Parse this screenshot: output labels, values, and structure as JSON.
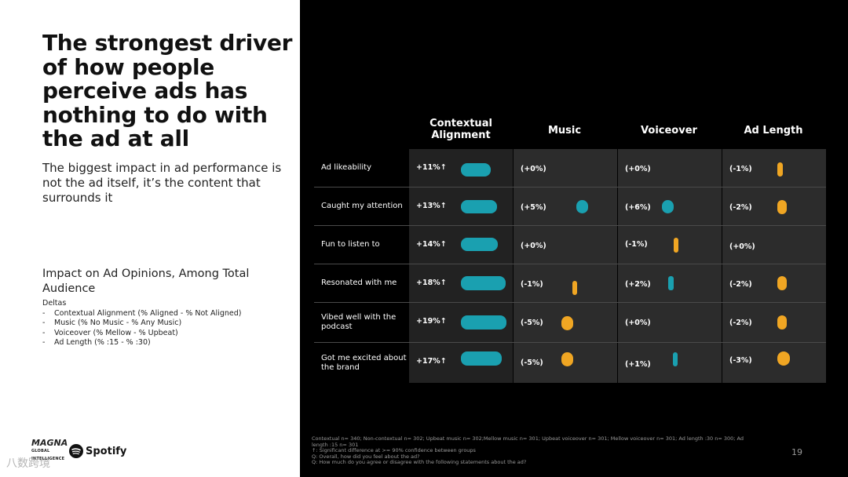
{
  "slide": {
    "headline": "The strongest driver of how people perceive ads has nothing to do with the ad at all",
    "subhead": "The biggest impact in ad performance is not the ad itself, it’s the content that surrounds it",
    "section_title": "Impact on Ad Opinions, Among Total Audience",
    "deltas_label": "Deltas",
    "deltas": [
      "Contextual Alignment (% Aligned - % Not Aligned)",
      "Music (% No Music - % Any Music)",
      "Voiceover (% Mellow - % Upbeat)",
      "Ad Length (% :15 - % :30)"
    ],
    "page_number": "19",
    "logos": {
      "magna": "MAGNA",
      "magna_sub": "GLOBAL INTELLIGENCE",
      "spotify": "Spotify"
    },
    "watermark": "八数跨境"
  },
  "colors": {
    "teal": "#1aa0b0",
    "orange": "#f0a623",
    "background_right": "#000000",
    "cell": "#2c2c2c"
  },
  "table": {
    "columns": [
      "Contextual Alignment",
      "Music",
      "Voiceover",
      "Ad Length"
    ],
    "rows": [
      {
        "label": "Ad likeability",
        "values": [
          "+11%↑",
          "(+0%)",
          "(+0%)",
          "(-1%)"
        ]
      },
      {
        "label": "Caught my attention",
        "values": [
          "+13%↑",
          "(+5%)",
          "(+6%)",
          "(-2%)"
        ]
      },
      {
        "label": "Fun to listen to",
        "values": [
          "+14%↑",
          "(+0%)",
          "(-1%)",
          "(+0%)"
        ]
      },
      {
        "label": "Resonated with me",
        "values": [
          "+18%↑",
          "(-1%)",
          "(+2%)",
          "(-2%)"
        ]
      },
      {
        "label": "Vibed well with the podcast",
        "values": [
          "+19%↑",
          "(-5%)",
          "(+0%)",
          "(-2%)"
        ]
      },
      {
        "label": "Got me excited about the brand",
        "values": [
          "+17%↑",
          "(-5%)",
          "(+1%)",
          "(-3%)"
        ]
      }
    ]
  },
  "footnotes": [
    "Contextual n= 340; Non-contextual n= 302; Upbeat music n= 302;Mellow music n= 301; Upbeat voiceover n= 301; Mellow voiceover n= 301; Ad length :30 n= 300; Ad length :15 n= 301",
    "↑: Significant difference at >= 90% confidence between groups",
    "Q: Overall, how did you feel about the ad?",
    "Q: How much do you agree or disagree with the following statements about the ad?"
  ]
}
